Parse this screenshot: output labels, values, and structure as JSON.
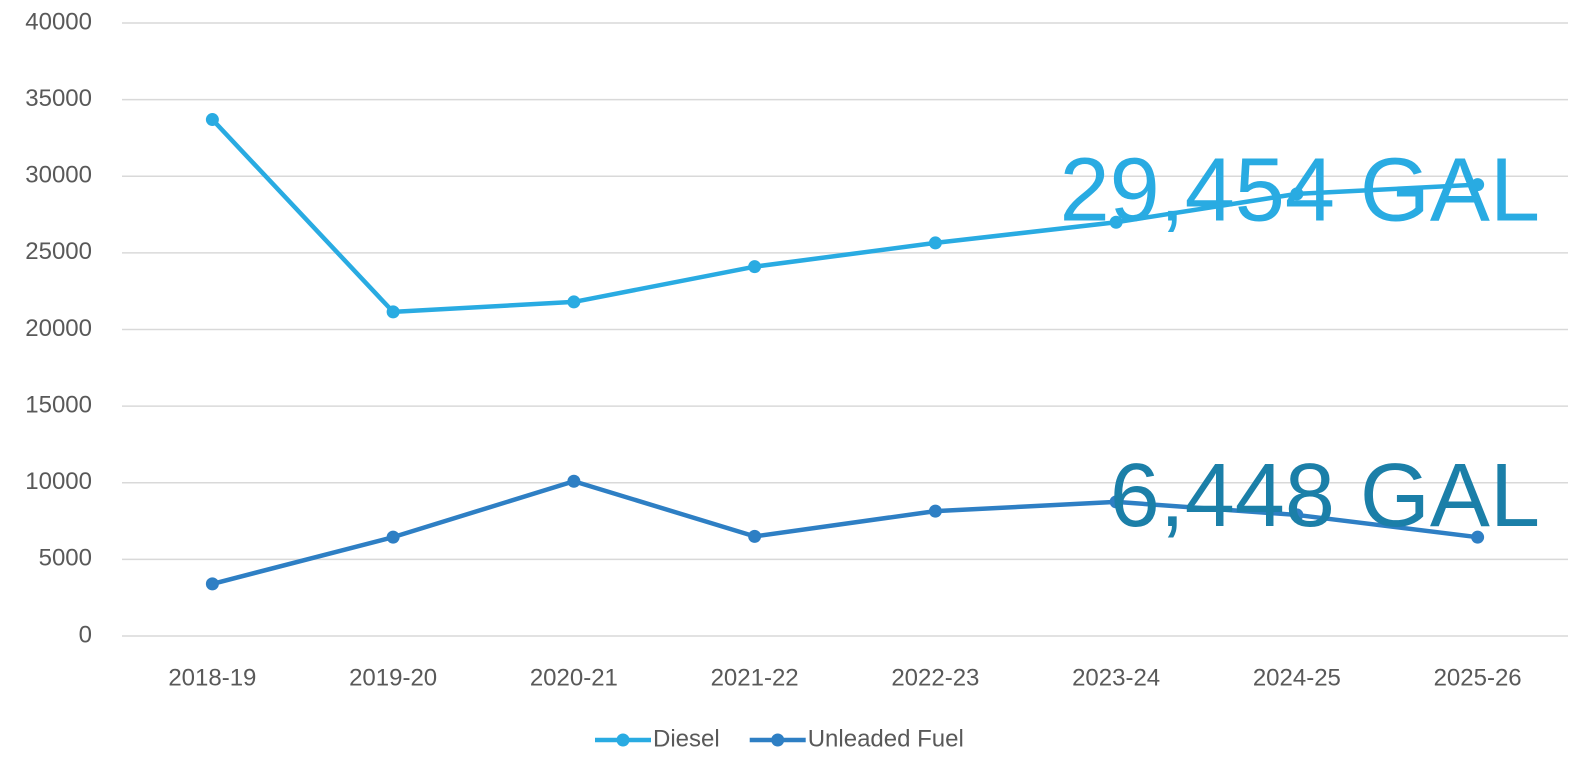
{
  "chart_data": {
    "type": "line",
    "categories": [
      "2018-19",
      "2019-20",
      "2020-21",
      "2021-22",
      "2022-23",
      "2023-24",
      "2024-25",
      "2025-26"
    ],
    "series": [
      {
        "name": "Diesel",
        "color": "#29abe2",
        "values": [
          33700,
          21150,
          21800,
          24100,
          25650,
          27000,
          28850,
          29454
        ]
      },
      {
        "name": "Unleaded Fuel",
        "color": "#2e7fc4",
        "values": [
          3400,
          6450,
          10100,
          6500,
          8150,
          8750,
          7900,
          6448
        ]
      }
    ],
    "annotations": [
      {
        "text": "29,454 GAL",
        "color": "#29abe2"
      },
      {
        "text": "6,448 GAL",
        "color": "#1b7fa8"
      }
    ],
    "ylim": [
      0,
      40000
    ],
    "yticks": [
      0,
      5000,
      10000,
      15000,
      20000,
      25000,
      30000,
      35000,
      40000
    ],
    "grid": true,
    "legend": "bottom"
  }
}
